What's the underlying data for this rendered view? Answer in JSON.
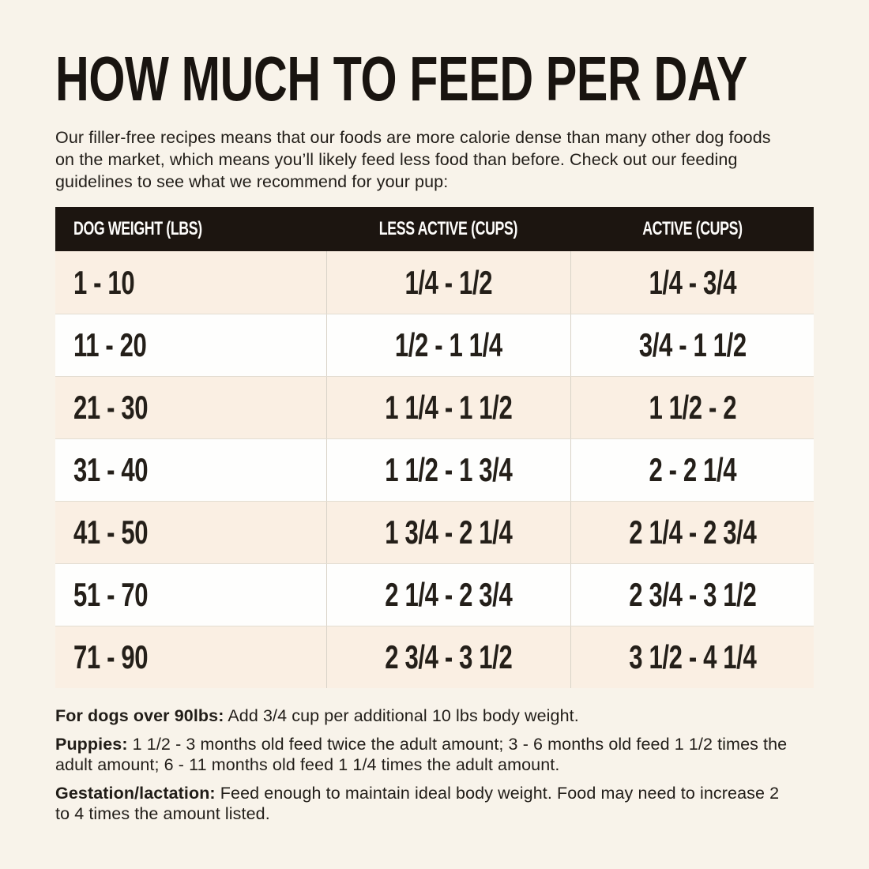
{
  "page": {
    "title": "HOW MUCH TO FEED PER DAY",
    "intro": "Our filler-free recipes means that our foods are more calorie dense than many other dog foods on the market, which means you’ll likely feed less food than before. Check out our feeding guidelines to see what we recommend for your pup:"
  },
  "table": {
    "headers": [
      "DOG WEIGHT (LBS)",
      "LESS ACTIVE (CUPS)",
      "ACTIVE (CUPS)"
    ],
    "rows": [
      {
        "weight": "1 - 10",
        "less_active": "1/4 - 1/2",
        "active": "1/4 - 3/4"
      },
      {
        "weight": "11 - 20",
        "less_active": "1/2 - 1 1/4",
        "active": "3/4 - 1 1/2"
      },
      {
        "weight": "21 - 30",
        "less_active": "1 1/4 - 1 1/2",
        "active": "1 1/2 - 2"
      },
      {
        "weight": "31 - 40",
        "less_active": "1 1/2 - 1 3/4",
        "active": "2 - 2 1/4"
      },
      {
        "weight": "41 - 50",
        "less_active": "1 3/4 - 2 1/4",
        "active": "2 1/4 - 2 3/4"
      },
      {
        "weight": "51 - 70",
        "less_active": "2 1/4 - 2 3/4",
        "active": "2 3/4 - 3 1/2"
      },
      {
        "weight": "71 - 90",
        "less_active": "2 3/4 - 3 1/2",
        "active": "3 1/2 - 4 1/4"
      }
    ]
  },
  "notes": [
    {
      "label": "For dogs over 90lbs:",
      "text": "Add 3/4 cup per additional 10 lbs body weight."
    },
    {
      "label": "Puppies:",
      "text": "1 1/2 - 3 months old feed twice the adult amount; 3 - 6 months old feed 1 1/2 times the adult amount; 6 - 11 months old feed 1 1/4 times the adult amount."
    },
    {
      "label": "Gestation/lactation:",
      "text": "Feed enough to maintain ideal body weight. Food may need to increase 2 to 4 times the amount listed."
    }
  ],
  "colors": {
    "page_background": "#f8f3ea",
    "table_header_background": "#1c1510",
    "table_header_text": "#fdfcfa",
    "row_cream": "#faefe3",
    "row_white": "#fefefd",
    "body_text": "#211d18",
    "column_divider": "#d9d3c8"
  }
}
